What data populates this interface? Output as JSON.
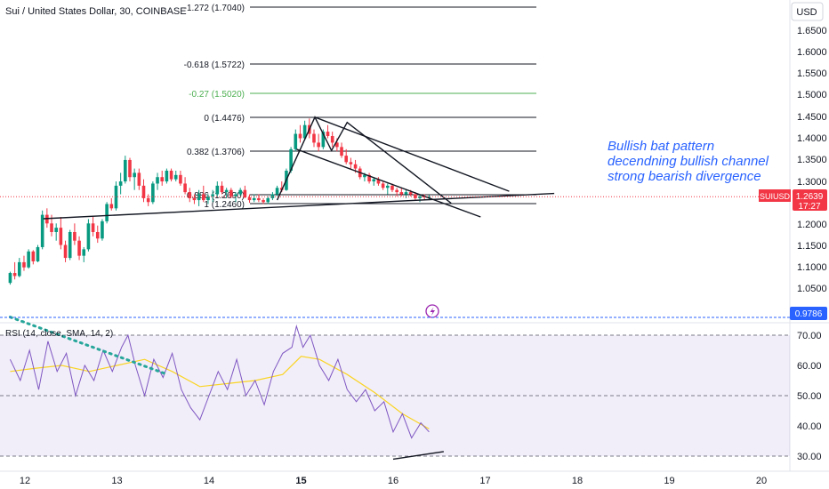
{
  "header": {
    "symbol_title": "Sui / United States Dollar, 30, COINBASE",
    "currency": "USD"
  },
  "chart_data": {
    "type": "candlestick",
    "price_axis": {
      "ticks": [
        "1.6500",
        "1.6000",
        "1.5500",
        "1.5000",
        "1.4500",
        "1.4000",
        "1.3500",
        "1.3000",
        "1.2500",
        "1.2000",
        "1.1500",
        "1.1000",
        "1.0500"
      ],
      "ylim": [
        1.02,
        1.68
      ]
    },
    "time_axis": {
      "ticks": [
        "12",
        "13",
        "14",
        "15",
        "16",
        "17",
        "18",
        "19",
        "20"
      ],
      "bold": [
        "15"
      ]
    },
    "last_price": {
      "symbol": "SUIUSD",
      "price": "1.2639",
      "countdown": "17:27",
      "value": 1.2639
    },
    "alert_price": {
      "label": "0.9786"
    },
    "fibonacci": [
      {
        "label": "-1.272 (1.7040)",
        "value": 1.704,
        "color": "#131722"
      },
      {
        "label": "-0.618 (1.5722)",
        "value": 1.5722,
        "color": "#131722"
      },
      {
        "label": "-0.27 (1.5020)",
        "value": 1.502,
        "color": "#4caf50"
      },
      {
        "label": "0 (1.4476)",
        "value": 1.4476,
        "color": "#131722"
      },
      {
        "label": "0.382 (1.3706)",
        "value": 1.3706,
        "color": "#131722"
      },
      {
        "label": "0.886 (1.2690)",
        "value": 1.269,
        "color": "#131722"
      },
      {
        "label": "1 (1.2460)",
        "value": 1.246,
        "color": "#131722"
      }
    ],
    "annotation_lines": [
      "Bullish bat pattern",
      "decendning bullish channel",
      "strong bearish divergence"
    ],
    "candles": [
      [
        11.84,
        1.062,
        1.088,
        1.058,
        1.085
      ],
      [
        11.89,
        1.085,
        1.11,
        1.07,
        1.078
      ],
      [
        11.94,
        1.078,
        1.12,
        1.075,
        1.11
      ],
      [
        11.99,
        1.11,
        1.125,
        1.09,
        1.098
      ],
      [
        12.04,
        1.098,
        1.14,
        1.095,
        1.135
      ],
      [
        12.09,
        1.135,
        1.138,
        1.105,
        1.112
      ],
      [
        12.14,
        1.112,
        1.15,
        1.11,
        1.145
      ],
      [
        12.19,
        1.145,
        1.23,
        1.14,
        1.22
      ],
      [
        12.24,
        1.22,
        1.235,
        1.19,
        1.2
      ],
      [
        12.29,
        1.2,
        1.22,
        1.17,
        1.18
      ],
      [
        12.34,
        1.18,
        1.2,
        1.16,
        1.19
      ],
      [
        12.39,
        1.19,
        1.215,
        1.14,
        1.15
      ],
      [
        12.44,
        1.15,
        1.16,
        1.11,
        1.12
      ],
      [
        12.49,
        1.12,
        1.185,
        1.115,
        1.18
      ],
      [
        12.54,
        1.18,
        1.2,
        1.15,
        1.16
      ],
      [
        12.59,
        1.16,
        1.17,
        1.115,
        1.125
      ],
      [
        12.64,
        1.125,
        1.145,
        1.11,
        1.14
      ],
      [
        12.69,
        1.14,
        1.21,
        1.135,
        1.2
      ],
      [
        12.74,
        1.2,
        1.215,
        1.17,
        1.18
      ],
      [
        12.79,
        1.18,
        1.195,
        1.155,
        1.165
      ],
      [
        12.84,
        1.165,
        1.21,
        1.16,
        1.205
      ],
      [
        12.89,
        1.205,
        1.25,
        1.2,
        1.245
      ],
      [
        12.94,
        1.245,
        1.26,
        1.23,
        1.235
      ],
      [
        12.99,
        1.235,
        1.3,
        1.23,
        1.29
      ],
      [
        13.04,
        1.29,
        1.32,
        1.27,
        1.3
      ],
      [
        13.09,
        1.3,
        1.36,
        1.295,
        1.35
      ],
      [
        13.14,
        1.35,
        1.355,
        1.3,
        1.31
      ],
      [
        13.19,
        1.31,
        1.33,
        1.28,
        1.32
      ],
      [
        13.24,
        1.32,
        1.33,
        1.28,
        1.29
      ],
      [
        13.29,
        1.29,
        1.305,
        1.25,
        1.26
      ],
      [
        13.34,
        1.26,
        1.27,
        1.24,
        1.25
      ],
      [
        13.39,
        1.25,
        1.3,
        1.245,
        1.295
      ],
      [
        13.44,
        1.295,
        1.32,
        1.28,
        1.31
      ],
      [
        13.49,
        1.31,
        1.325,
        1.29,
        1.3
      ],
      [
        13.54,
        1.3,
        1.33,
        1.295,
        1.325
      ],
      [
        13.59,
        1.325,
        1.33,
        1.3,
        1.305
      ],
      [
        13.64,
        1.305,
        1.325,
        1.3,
        1.315
      ],
      [
        13.69,
        1.315,
        1.325,
        1.29,
        1.295
      ],
      [
        13.74,
        1.295,
        1.31,
        1.27,
        1.275
      ],
      [
        13.79,
        1.275,
        1.285,
        1.25,
        1.26
      ],
      [
        13.84,
        1.26,
        1.27,
        1.245,
        1.255
      ],
      [
        13.89,
        1.255,
        1.28,
        1.24,
        1.27
      ],
      [
        13.94,
        1.27,
        1.29,
        1.25,
        1.255
      ],
      [
        13.99,
        1.255,
        1.27,
        1.245,
        1.265
      ],
      [
        14.04,
        1.265,
        1.28,
        1.25,
        1.27
      ],
      [
        14.09,
        1.27,
        1.3,
        1.265,
        1.29
      ],
      [
        14.14,
        1.29,
        1.3,
        1.27,
        1.275
      ],
      [
        14.19,
        1.275,
        1.285,
        1.26,
        1.28
      ],
      [
        14.24,
        1.28,
        1.285,
        1.26,
        1.265
      ],
      [
        14.29,
        1.265,
        1.275,
        1.25,
        1.27
      ],
      [
        14.34,
        1.27,
        1.285,
        1.265,
        1.28
      ],
      [
        14.39,
        1.28,
        1.29,
        1.26,
        1.262
      ],
      [
        14.44,
        1.262,
        1.27,
        1.248,
        1.255
      ],
      [
        14.49,
        1.255,
        1.27,
        1.25,
        1.26
      ],
      [
        14.54,
        1.26,
        1.27,
        1.25,
        1.255
      ],
      [
        14.59,
        1.255,
        1.26,
        1.245,
        1.25
      ],
      [
        14.64,
        1.25,
        1.265,
        1.245,
        1.26
      ],
      [
        14.69,
        1.26,
        1.275,
        1.255,
        1.27
      ],
      [
        14.74,
        1.27,
        1.29,
        1.265,
        1.285
      ],
      [
        14.79,
        1.285,
        1.3,
        1.275,
        1.28
      ],
      [
        14.84,
        1.28,
        1.33,
        1.278,
        1.325
      ],
      [
        14.89,
        1.325,
        1.38,
        1.32,
        1.375
      ],
      [
        14.94,
        1.375,
        1.42,
        1.37,
        1.41
      ],
      [
        14.99,
        1.41,
        1.43,
        1.39,
        1.4
      ],
      [
        15.04,
        1.4,
        1.44,
        1.395,
        1.43
      ],
      [
        15.09,
        1.43,
        1.445,
        1.4,
        1.41
      ],
      [
        15.14,
        1.41,
        1.42,
        1.38,
        1.39
      ],
      [
        15.19,
        1.39,
        1.41,
        1.37,
        1.38
      ],
      [
        15.24,
        1.38,
        1.42,
        1.375,
        1.415
      ],
      [
        15.29,
        1.415,
        1.43,
        1.4,
        1.405
      ],
      [
        15.34,
        1.405,
        1.415,
        1.38,
        1.39
      ],
      [
        15.39,
        1.39,
        1.4,
        1.37,
        1.38
      ],
      [
        15.44,
        1.38,
        1.39,
        1.355,
        1.36
      ],
      [
        15.49,
        1.36,
        1.375,
        1.34,
        1.345
      ],
      [
        15.54,
        1.345,
        1.355,
        1.33,
        1.34
      ],
      [
        15.59,
        1.34,
        1.35,
        1.32,
        1.33
      ],
      [
        15.64,
        1.33,
        1.335,
        1.305,
        1.31
      ],
      [
        15.69,
        1.31,
        1.32,
        1.3,
        1.315
      ],
      [
        15.74,
        1.315,
        1.32,
        1.295,
        1.3
      ],
      [
        15.79,
        1.3,
        1.31,
        1.29,
        1.305
      ],
      [
        15.84,
        1.305,
        1.31,
        1.29,
        1.295
      ],
      [
        15.89,
        1.295,
        1.3,
        1.28,
        1.285
      ],
      [
        15.94,
        1.285,
        1.295,
        1.27,
        1.29
      ],
      [
        15.99,
        1.29,
        1.295,
        1.275,
        1.28
      ],
      [
        16.04,
        1.28,
        1.285,
        1.265,
        1.275
      ],
      [
        16.09,
        1.275,
        1.285,
        1.265,
        1.27
      ],
      [
        16.14,
        1.27,
        1.28,
        1.26,
        1.275
      ],
      [
        16.19,
        1.275,
        1.28,
        1.265,
        1.27
      ],
      [
        16.24,
        1.27,
        1.275,
        1.255,
        1.26
      ],
      [
        16.29,
        1.26,
        1.27,
        1.25,
        1.265
      ],
      [
        16.34,
        1.265,
        1.27,
        1.255,
        1.262
      ],
      [
        16.39,
        1.262,
        1.268,
        1.255,
        1.264
      ]
    ],
    "bat_pattern": [
      [
        14.74,
        1.255
      ],
      [
        15.15,
        1.448
      ],
      [
        15.33,
        1.372
      ],
      [
        15.5,
        1.436
      ],
      [
        16.63,
        1.247
      ]
    ],
    "channel_upper": [
      [
        15.15,
        1.448
      ],
      [
        17.26,
        1.277
      ]
    ],
    "channel_lower": [
      [
        14.95,
        1.375
      ],
      [
        16.95,
        1.215
      ]
    ],
    "trendline": [
      [
        12.2,
        1.211
      ],
      [
        17.75,
        1.272
      ]
    ],
    "rsi": {
      "label": "RSI (14, close, SMA, 14, 2)",
      "ticks": [
        "70.00",
        "60.00",
        "50.00",
        "40.00",
        "30.00"
      ],
      "ylim": [
        27,
        77
      ],
      "band": [
        30,
        70
      ],
      "midline": 50,
      "rsi_values": [
        [
          11.84,
          62
        ],
        [
          11.95,
          55
        ],
        [
          12.05,
          65
        ],
        [
          12.15,
          52
        ],
        [
          12.25,
          68
        ],
        [
          12.35,
          58
        ],
        [
          12.45,
          64
        ],
        [
          12.55,
          50
        ],
        [
          12.65,
          60
        ],
        [
          12.75,
          55
        ],
        [
          12.85,
          65
        ],
        [
          12.95,
          58
        ],
        [
          13.05,
          66
        ],
        [
          13.12,
          70
        ],
        [
          13.2,
          60
        ],
        [
          13.3,
          50
        ],
        [
          13.4,
          62
        ],
        [
          13.5,
          56
        ],
        [
          13.6,
          64
        ],
        [
          13.7,
          52
        ],
        [
          13.8,
          46
        ],
        [
          13.9,
          42
        ],
        [
          14.0,
          50
        ],
        [
          14.1,
          58
        ],
        [
          14.2,
          52
        ],
        [
          14.3,
          62
        ],
        [
          14.4,
          50
        ],
        [
          14.5,
          55
        ],
        [
          14.6,
          47
        ],
        [
          14.7,
          58
        ],
        [
          14.8,
          64
        ],
        [
          14.9,
          66
        ],
        [
          14.95,
          73
        ],
        [
          15.02,
          66
        ],
        [
          15.1,
          70
        ],
        [
          15.2,
          60
        ],
        [
          15.3,
          55
        ],
        [
          15.4,
          62
        ],
        [
          15.5,
          52
        ],
        [
          15.6,
          48
        ],
        [
          15.7,
          52
        ],
        [
          15.8,
          45
        ],
        [
          15.9,
          48
        ],
        [
          16.0,
          38
        ],
        [
          16.1,
          44
        ],
        [
          16.2,
          36
        ],
        [
          16.3,
          41
        ],
        [
          16.39,
          38
        ]
      ],
      "sma_values": [
        [
          11.84,
          58
        ],
        [
          12.1,
          59
        ],
        [
          12.4,
          60
        ],
        [
          12.7,
          58
        ],
        [
          13.0,
          60
        ],
        [
          13.3,
          62
        ],
        [
          13.6,
          58
        ],
        [
          13.9,
          53
        ],
        [
          14.2,
          54
        ],
        [
          14.5,
          55
        ],
        [
          14.8,
          57
        ],
        [
          15.0,
          63
        ],
        [
          15.2,
          62
        ],
        [
          15.5,
          57
        ],
        [
          15.8,
          51
        ],
        [
          16.1,
          44
        ],
        [
          16.39,
          39
        ]
      ],
      "divergence_line": [
        [
          16.0,
          29
        ],
        [
          16.55,
          31.5
        ]
      ],
      "dotted_line": [
        [
          11.84,
          76
        ],
        [
          13.55,
          57
        ]
      ]
    }
  }
}
